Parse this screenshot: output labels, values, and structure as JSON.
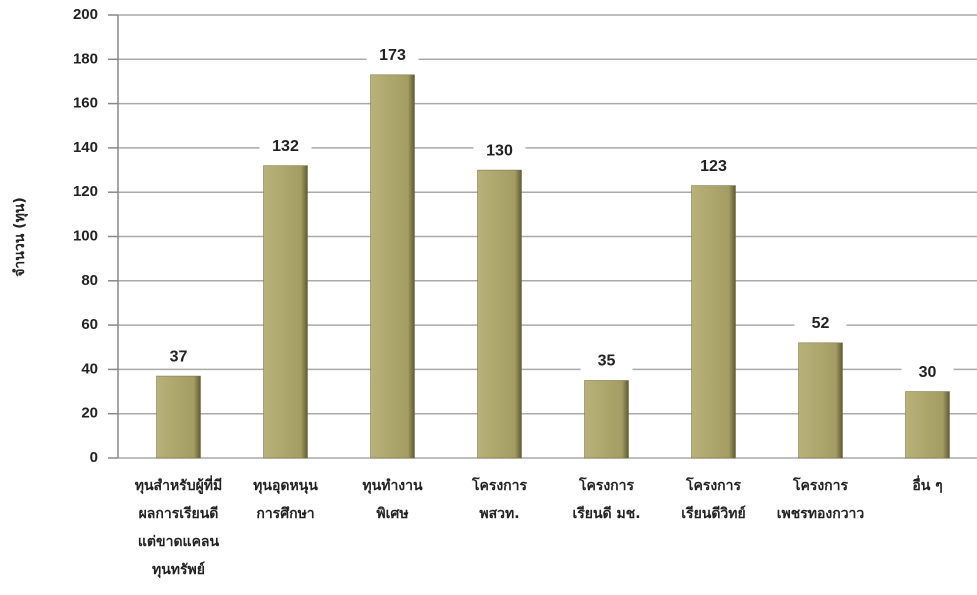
{
  "chart_data": {
    "type": "bar",
    "y_label": "จำนวน (ทุน)",
    "categories": [
      [
        "ทุนสำหรับผู้ที่มี",
        "ผลการเรียนดี",
        "แต่ขาดแคลน",
        "ทุนทรัพย์"
      ],
      [
        "ทุนอุดหนุน",
        "การศึกษา"
      ],
      [
        "ทุนทำงาน",
        "พิเศษ"
      ],
      [
        "โครงการ",
        "พสวท."
      ],
      [
        "โครงการ",
        "เรียนดี มช."
      ],
      [
        "โครงการ",
        "เรียนดีวิทย์"
      ],
      [
        "โครงการ",
        "เพชรทองกวาว"
      ],
      [
        "อื่น ๆ"
      ]
    ],
    "values": [
      37,
      132,
      173,
      130,
      35,
      123,
      52,
      30
    ],
    "color": "#a39d63",
    "ylim": [
      0,
      200
    ],
    "yticks": [
      0,
      20,
      40,
      60,
      80,
      100,
      120,
      140,
      160,
      180,
      200
    ],
    "grid": true
  }
}
